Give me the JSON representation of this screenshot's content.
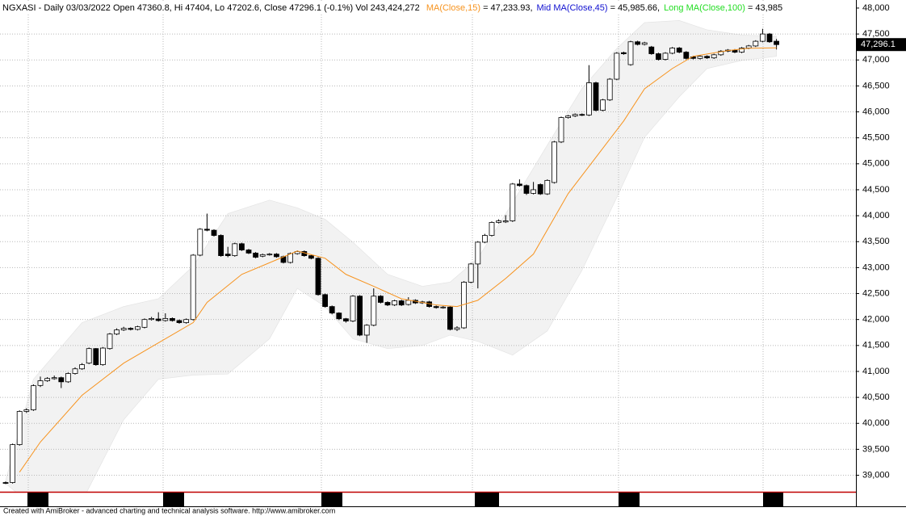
{
  "chart_data": {
    "type": "candlestick",
    "title": "NGXASI - Daily 03/03/2022 Open 47360.8, Hi 47404, Lo 47202.6, Close 47296.1 (-0.1%) Vol 243,424,272",
    "indicators": [
      {
        "name": "MA(Close,15)",
        "color": "#f7931e",
        "value_label": "= 47,233.93,"
      },
      {
        "name": "Mid MA(Close,45)",
        "color": "#1010d0",
        "value_label": "= 45,985.66,"
      },
      {
        "name": "Long MA(Close,100)",
        "color": "#22dd22",
        "value_label": "= 43,985"
      }
    ],
    "open": [
      38860,
      38860,
      39590,
      40230,
      40260,
      40730,
      40820,
      40860,
      40880,
      40800,
      40960,
      41050,
      41160,
      41440,
      41130,
      41440,
      41720,
      41800,
      41830,
      41810,
      41850,
      42000,
      42010,
      41980,
      42020,
      41980,
      41940,
      42000,
      43240,
      43740,
      43720,
      43620,
      43260,
      43230,
      43460,
      43340,
      43280,
      43220,
      43250,
      43260,
      43210,
      43100,
      43270,
      43310,
      43230,
      43180,
      42480,
      42250,
      42125,
      42015,
      41970,
      42450,
      41700,
      41890,
      42450,
      42330,
      42280,
      42360,
      42290,
      42370,
      42320,
      42340,
      42250,
      42230,
      42240,
      41810,
      41840,
      42720,
      43070,
      43490,
      43620,
      43870,
      43880,
      43900,
      44610,
      44580,
      44430,
      44600,
      44420,
      44640,
      45420,
      45890,
      45920,
      45950,
      45940,
      46560,
      46030,
      46230,
      46630,
      47140,
      46910,
      47350,
      47300,
      47250,
      47120,
      47010,
      47130,
      47230,
      47150,
      47060,
      47030,
      47070,
      47040,
      47100,
      47170,
      47190,
      47150,
      47230,
      47270,
      47360,
      47500,
      47360.8
    ],
    "high": [
      38880,
      39610,
      40250,
      40290,
      40750,
      40900,
      40890,
      40920,
      40900,
      40980,
      41080,
      41160,
      41460,
      41450,
      41470,
      41740,
      41830,
      41860,
      41850,
      41880,
      42020,
      42050,
      42140,
      42120,
      42040,
      42000,
      42020,
      43260,
      43760,
      44040,
      43740,
      43640,
      43400,
      43480,
      43480,
      43360,
      43300,
      43270,
      43280,
      43280,
      43230,
      43290,
      43330,
      43330,
      43250,
      43200,
      42500,
      42270,
      42140,
      42030,
      42470,
      42470,
      41910,
      42600,
      42470,
      42350,
      42380,
      42380,
      42430,
      42390,
      42360,
      42360,
      42270,
      42260,
      42260,
      41870,
      42740,
      43090,
      43510,
      43650,
      43890,
      43930,
      44010,
      44630,
      44700,
      44600,
      44650,
      44620,
      44700,
      45440,
      45910,
      45940,
      45970,
      45970,
      46900,
      46580,
      46250,
      46650,
      47150,
      47160,
      47370,
      47370,
      47350,
      47270,
      47140,
      47150,
      47250,
      47250,
      47170,
      47080,
      47090,
      47090,
      47120,
      47190,
      47210,
      47210,
      47250,
      47290,
      47380,
      47600,
      47520,
      47404
    ],
    "low": [
      38830,
      38840,
      39570,
      40200,
      40240,
      40700,
      40800,
      40840,
      40680,
      40780,
      40940,
      41030,
      41140,
      41110,
      41110,
      41420,
      41700,
      41780,
      41790,
      41790,
      41830,
      41980,
      41960,
      41960,
      41960,
      41920,
      41920,
      41980,
      43220,
      43700,
      43600,
      43210,
      43200,
      43210,
      43320,
      43260,
      43180,
      43200,
      43230,
      43190,
      43080,
      43080,
      43250,
      43210,
      43160,
      42460,
      42230,
      42100,
      41990,
      41940,
      41950,
      41680,
      41550,
      41870,
      42310,
      42260,
      42260,
      42260,
      42270,
      42300,
      42300,
      42230,
      42210,
      42210,
      41790,
      41780,
      41820,
      42700,
      42600,
      43470,
      43600,
      43850,
      43860,
      43880,
      44560,
      44400,
      44410,
      44400,
      44400,
      44620,
      45400,
      45870,
      45900,
      45920,
      45920,
      46010,
      46010,
      46210,
      46610,
      47100,
      46890,
      47280,
      47280,
      47100,
      46990,
      46990,
      47110,
      47130,
      47010,
      47010,
      47010,
      47020,
      47020,
      47080,
      47150,
      47130,
      47130,
      47210,
      47250,
      47340,
      47330,
      47202.6
    ],
    "close": [
      38850,
      39590,
      40230,
      40260,
      40725,
      40820,
      40865,
      40880,
      40800,
      40960,
      41050,
      41130,
      41440,
      41130,
      41450,
      41720,
      41800,
      41830,
      41810,
      41860,
      42000,
      42020,
      41980,
      42020,
      41980,
      41940,
      42000,
      43240,
      43740,
      43720,
      43620,
      43230,
      43230,
      43460,
      43340,
      43280,
      43200,
      43250,
      43260,
      43210,
      43100,
      43270,
      43310,
      43230,
      43180,
      42480,
      42250,
      42125,
      42015,
      41970,
      42450,
      41700,
      41890,
      42450,
      42330,
      42280,
      42360,
      42280,
      42370,
      42320,
      42340,
      42250,
      42230,
      42240,
      41810,
      41840,
      42720,
      43070,
      43490,
      43620,
      43870,
      43900,
      43900,
      44610,
      44580,
      44430,
      44500,
      44420,
      44680,
      45420,
      45890,
      45920,
      45950,
      45940,
      46560,
      46030,
      46230,
      46630,
      47130,
      47120,
      47350,
      47300,
      47330,
      47120,
      47010,
      47130,
      47230,
      47150,
      47030,
      47030,
      47070,
      47040,
      47100,
      47170,
      47190,
      47150,
      47230,
      47270,
      47360,
      47500,
      47350,
      47296.1
    ],
    "ma": {
      "color": "#f7931e",
      "x": [
        2,
        5,
        11,
        17,
        22,
        27,
        29,
        34,
        39,
        42,
        46,
        49,
        53,
        57,
        62,
        65,
        68,
        72,
        76,
        81,
        85,
        89,
        92,
        96,
        99,
        104,
        107,
        111
      ],
      "values": [
        39060,
        39640,
        40540,
        41160,
        41550,
        41940,
        42330,
        42870,
        43150,
        43320,
        43180,
        42870,
        42640,
        42400,
        42280,
        42250,
        42370,
        42790,
        43260,
        44425,
        45125,
        45825,
        46445,
        46835,
        47070,
        47180,
        47225,
        47233.93
      ]
    },
    "band": {
      "color": "#f2f2f2",
      "x": [
        0,
        4,
        11,
        17,
        22,
        27,
        32,
        38,
        42,
        46,
        50,
        55,
        60,
        64,
        68,
        73,
        78,
        83,
        88,
        92,
        97,
        101,
        106,
        111
      ],
      "upper": [
        38900,
        40850,
        41940,
        42250,
        42400,
        43030,
        44040,
        44300,
        44150,
        43930,
        43490,
        42870,
        42640,
        42720,
        43180,
        44250,
        45360,
        46450,
        47220,
        47720,
        47760,
        47580,
        47480,
        47455
      ],
      "lower": [
        38840,
        38400,
        38500,
        40070,
        40850,
        40930,
        40950,
        41630,
        42600,
        42250,
        41630,
        41440,
        41500,
        41700,
        41580,
        41315,
        41780,
        42950,
        44350,
        45510,
        46290,
        46835,
        46990,
        47070
      ]
    },
    "last_price": {
      "value": 47296.1,
      "label": "47,296.1"
    },
    "ylim": [
      38674,
      48155
    ],
    "yticks": [
      {
        "value": 39000,
        "label": "39,000"
      },
      {
        "value": 39500,
        "label": "39,500"
      },
      {
        "value": 40000,
        "label": "40,000"
      },
      {
        "value": 40500,
        "label": "40,500"
      },
      {
        "value": 41000,
        "label": "41,000"
      },
      {
        "value": 41500,
        "label": "41,500"
      },
      {
        "value": 42000,
        "label": "42,000"
      },
      {
        "value": 42500,
        "label": "42,500"
      },
      {
        "value": 43000,
        "label": "43,000"
      },
      {
        "value": 43500,
        "label": "43,500"
      },
      {
        "value": 44000,
        "label": "44,000"
      },
      {
        "value": 44500,
        "label": "44,500"
      },
      {
        "value": 45000,
        "label": "45,000"
      },
      {
        "value": 45500,
        "label": "45,500"
      },
      {
        "value": 46000,
        "label": "46,000"
      },
      {
        "value": 46500,
        "label": "46,500"
      },
      {
        "value": 47000,
        "label": "47,000"
      },
      {
        "value": 47500,
        "label": "47,500"
      },
      {
        "value": 48000,
        "label": "48,000"
      }
    ],
    "grid": true,
    "footer": "Created with AmiBroker - advanced charting and technical analysis software. http://www.amibroker.com"
  }
}
